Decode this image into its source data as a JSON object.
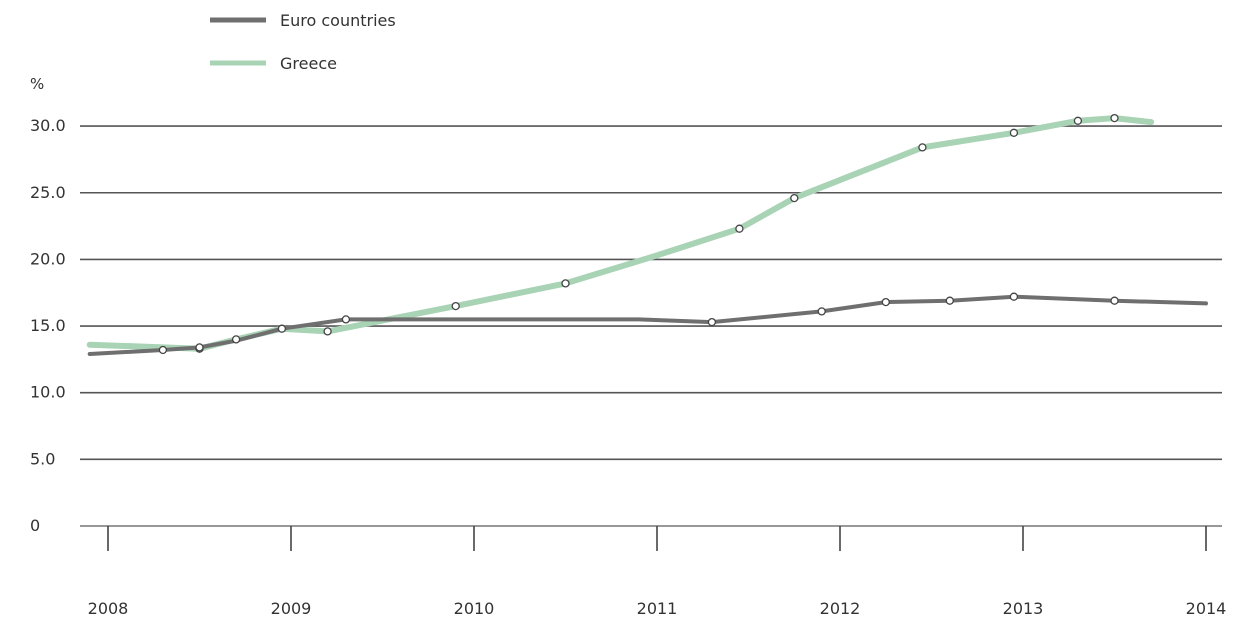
{
  "chart_data": {
    "type": "line",
    "title": "",
    "xlabel": "",
    "ylabel": "%",
    "ylim": [
      0,
      30
    ],
    "xlim": [
      2008.0,
      2014.0
    ],
    "y_ticks": [
      {
        "value": 0,
        "label": "0"
      },
      {
        "value": 5,
        "label": "5.0"
      },
      {
        "value": 10,
        "label": "10.0"
      },
      {
        "value": 15,
        "label": "15.0"
      },
      {
        "value": 20,
        "label": "20.0"
      },
      {
        "value": 25,
        "label": "25.0"
      },
      {
        "value": 30,
        "label": "30.0"
      }
    ],
    "x_ticks": [
      {
        "value": 2008,
        "label": "2008"
      },
      {
        "value": 2009,
        "label": "2009"
      },
      {
        "value": 2010,
        "label": "2010"
      },
      {
        "value": 2011,
        "label": "2011"
      },
      {
        "value": 2012,
        "label": "2012"
      },
      {
        "value": 2013,
        "label": "2013"
      },
      {
        "value": 2014,
        "label": "2014"
      }
    ],
    "grid": true,
    "legend_position": "top-left",
    "series": [
      {
        "name": "Euro countries",
        "color": "#6f6f6f",
        "values": [
          {
            "x": 2007.9,
            "y": 12.9
          },
          {
            "x": 2008.3,
            "y": 13.2
          },
          {
            "x": 2008.5,
            "y": 13.4
          },
          {
            "x": 2008.7,
            "y": 13.9
          },
          {
            "x": 2008.95,
            "y": 14.8
          },
          {
            "x": 2009.3,
            "y": 15.5
          },
          {
            "x": 2009.7,
            "y": 15.5
          },
          {
            "x": 2010.3,
            "y": 15.5
          },
          {
            "x": 2010.9,
            "y": 15.5
          },
          {
            "x": 2011.3,
            "y": 15.3
          },
          {
            "x": 2011.9,
            "y": 16.1
          },
          {
            "x": 2012.25,
            "y": 16.8
          },
          {
            "x": 2012.6,
            "y": 16.9
          },
          {
            "x": 2012.95,
            "y": 17.2
          },
          {
            "x": 2013.5,
            "y": 16.9
          },
          {
            "x": 2014.0,
            "y": 16.7
          }
        ],
        "markers": [
          {
            "x": 2008.3,
            "y": 13.2
          },
          {
            "x": 2008.5,
            "y": 13.4
          },
          {
            "x": 2008.95,
            "y": 14.8
          },
          {
            "x": 2009.3,
            "y": 15.5
          },
          {
            "x": 2011.3,
            "y": 15.3
          },
          {
            "x": 2011.9,
            "y": 16.1
          },
          {
            "x": 2012.25,
            "y": 16.8
          },
          {
            "x": 2012.6,
            "y": 16.9
          },
          {
            "x": 2012.95,
            "y": 17.2
          },
          {
            "x": 2013.5,
            "y": 16.9
          }
        ]
      },
      {
        "name": "Greece",
        "color": "#a9d3b5",
        "values": [
          {
            "x": 2007.9,
            "y": 13.6
          },
          {
            "x": 2008.5,
            "y": 13.3
          },
          {
            "x": 2008.7,
            "y": 14.0
          },
          {
            "x": 2008.95,
            "y": 14.8
          },
          {
            "x": 2009.2,
            "y": 14.6
          },
          {
            "x": 2009.9,
            "y": 16.5
          },
          {
            "x": 2010.5,
            "y": 18.2
          },
          {
            "x": 2011.0,
            "y": 20.3
          },
          {
            "x": 2011.45,
            "y": 22.3
          },
          {
            "x": 2011.75,
            "y": 24.6
          },
          {
            "x": 2012.45,
            "y": 28.4
          },
          {
            "x": 2012.95,
            "y": 29.5
          },
          {
            "x": 2013.3,
            "y": 30.4
          },
          {
            "x": 2013.5,
            "y": 30.6
          },
          {
            "x": 2013.7,
            "y": 30.3
          }
        ],
        "markers": [
          {
            "x": 2008.5,
            "y": 13.3
          },
          {
            "x": 2008.7,
            "y": 14.0
          },
          {
            "x": 2009.2,
            "y": 14.6
          },
          {
            "x": 2009.9,
            "y": 16.5
          },
          {
            "x": 2010.5,
            "y": 18.2
          },
          {
            "x": 2011.45,
            "y": 22.3
          },
          {
            "x": 2011.75,
            "y": 24.6
          },
          {
            "x": 2012.45,
            "y": 28.4
          },
          {
            "x": 2012.95,
            "y": 29.5
          },
          {
            "x": 2013.3,
            "y": 30.4
          },
          {
            "x": 2013.5,
            "y": 30.6
          }
        ]
      }
    ]
  }
}
